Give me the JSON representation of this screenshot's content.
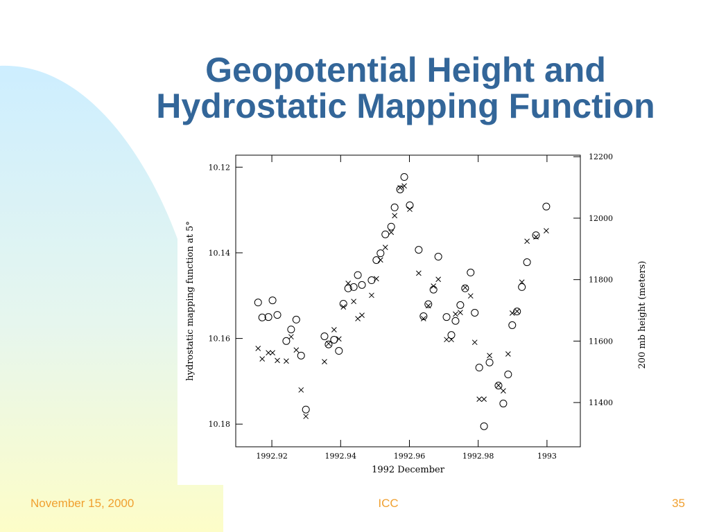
{
  "title_lines": [
    "Geopotential Height and",
    "Hydrostatic Mapping Function"
  ],
  "footer": {
    "date": "November 15, 2000",
    "center": "ICC",
    "page": "35"
  },
  "chart_data": {
    "type": "scatter",
    "xlabel": "1992 December",
    "ylabel": "hydrostatic mapping function at 5°",
    "y2label": "200 mb height (meters)",
    "xlim": [
      1992.9095,
      1993.0097
    ],
    "xticks": [
      1992.92,
      1992.94,
      1992.96,
      1992.98,
      1993
    ],
    "ylim": [
      10.1853,
      10.1172
    ],
    "yticks": [
      10.12,
      10.14,
      10.16,
      10.18
    ],
    "y2lim": [
      11256,
      12205
    ],
    "y2ticks": [
      11400,
      11600,
      11800,
      12000,
      12200
    ],
    "x": [
      1992.916,
      1992.9172,
      1992.919,
      1992.9202,
      1992.9216,
      1992.9242,
      1992.9256,
      1992.9271,
      1992.9285,
      1992.9299,
      1992.9353,
      1992.9365,
      1992.9381,
      1992.9395,
      1992.9408,
      1992.9422,
      1992.9438,
      1992.945,
      1992.9462,
      1992.949,
      1992.9504,
      1992.9516,
      1992.953,
      1992.9547,
      1992.9557,
      1992.9573,
      1992.9585,
      1992.9601,
      1992.9627,
      1992.9641,
      1992.9655,
      1992.967,
      1992.9684,
      1992.9708,
      1992.9722,
      1992.9734,
      1992.9748,
      1992.9762,
      1992.9778,
      1992.979,
      1992.9803,
      1992.9817,
      1992.9833,
      1992.9859,
      1992.9873,
      1992.9887,
      1992.9899,
      1992.9913,
      1992.9927,
      1992.9942,
      1992.9968,
      1992.9998
    ],
    "series": [
      {
        "marker": "circle",
        "color": "#000000",
        "values": [
          10.1516,
          10.1551,
          10.155,
          10.1511,
          10.1545,
          10.1606,
          10.1579,
          10.1556,
          10.164,
          10.1766,
          10.1595,
          10.1614,
          10.1603,
          10.1629,
          10.1519,
          10.1483,
          10.148,
          10.1452,
          10.1475,
          10.1464,
          10.1417,
          10.1401,
          10.1357,
          10.1339,
          10.1294,
          10.1252,
          10.1223,
          10.1289,
          10.1393,
          10.1548,
          10.152,
          10.1486,
          10.1409,
          10.155,
          10.1592,
          10.1559,
          10.1522,
          10.1483,
          10.1446,
          10.154,
          10.1668,
          10.1805,
          10.1656,
          10.171,
          10.1752,
          10.1684,
          10.1569,
          10.1537,
          10.148,
          10.1422,
          10.1359,
          10.1292
        ]
      },
      {
        "marker": "cross",
        "color": "#000000",
        "axis": "y2",
        "values": [
          11576,
          11542,
          11562,
          11562,
          11537,
          11535,
          11614,
          11571,
          11441,
          11355,
          11533,
          11592,
          11637,
          11607,
          11711,
          11788,
          11729,
          11673,
          11684,
          11749,
          11803,
          11864,
          11905,
          11954,
          12008,
          12099,
          12105,
          12029,
          11821,
          11673,
          11715,
          11779,
          11801,
          11605,
          11605,
          11688,
          11693,
          11774,
          11747,
          11596,
          11411,
          11411,
          11553,
          11456,
          11438,
          11558,
          11691,
          11697,
          11792,
          11925,
          11939,
          11959
        ]
      }
    ]
  }
}
